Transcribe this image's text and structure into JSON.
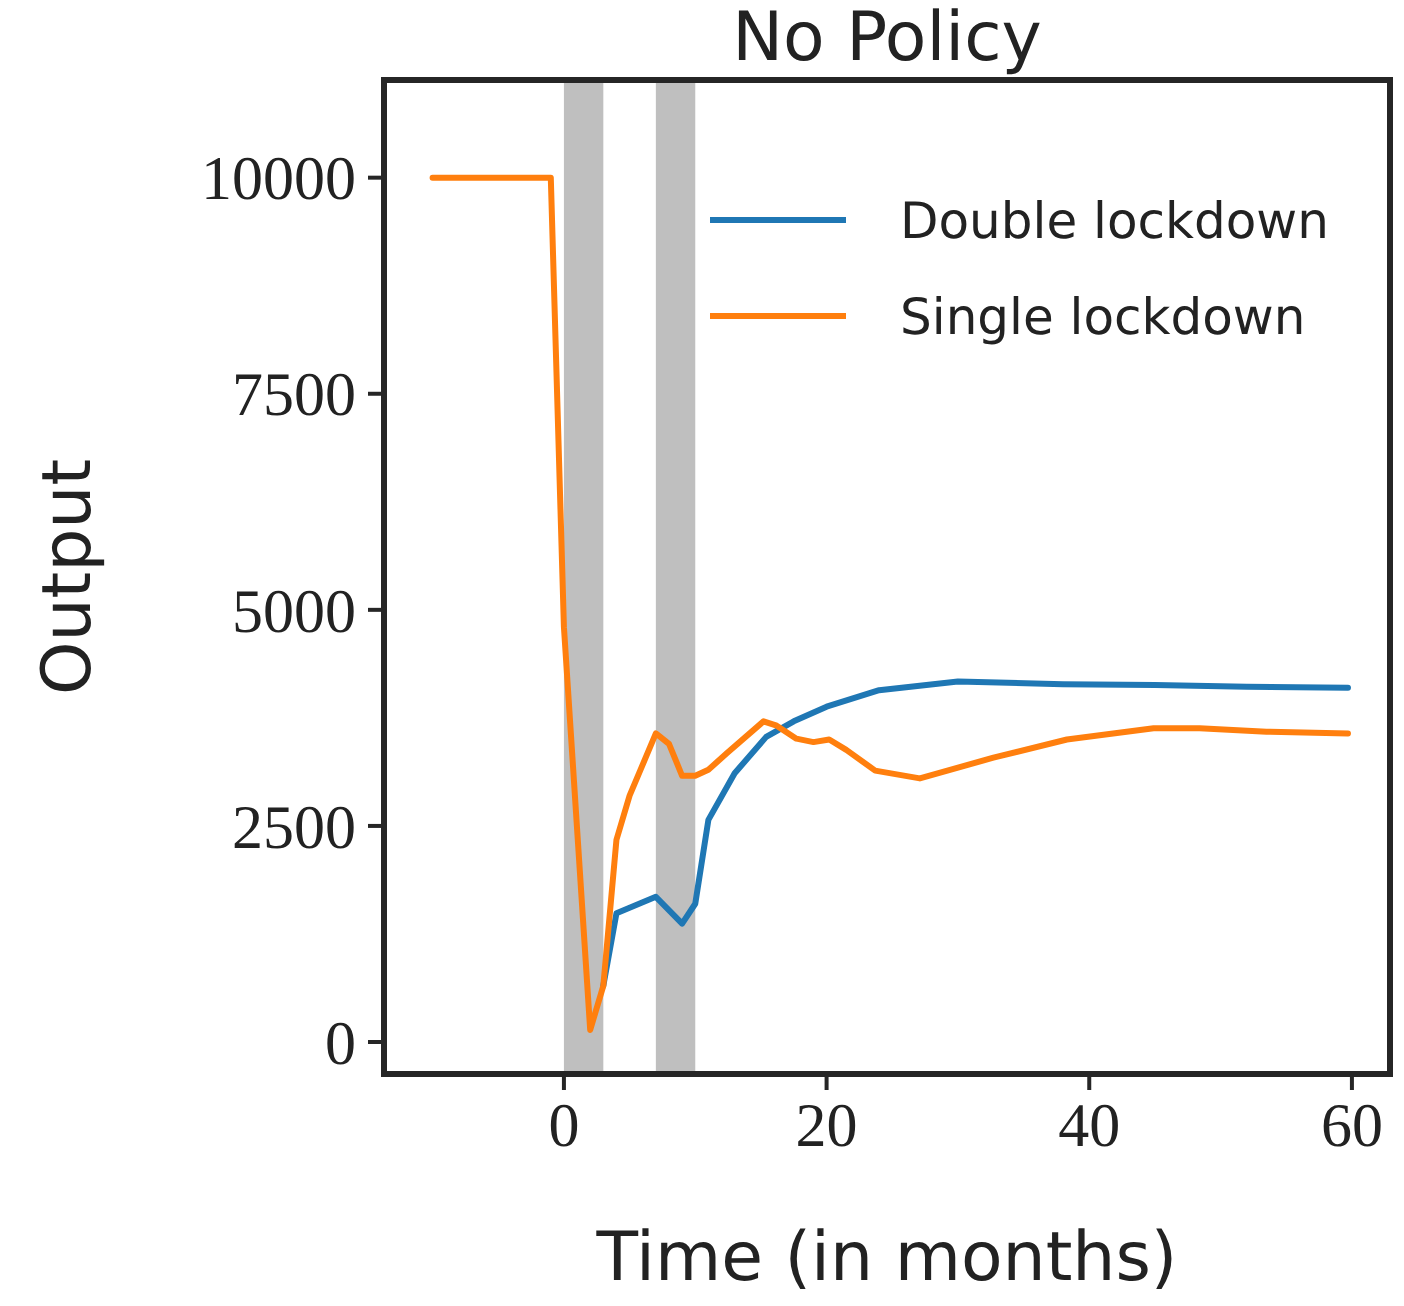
{
  "chart_data": {
    "type": "line",
    "title": "No Policy",
    "xlabel": "Time (in months)",
    "ylabel": "Output",
    "xlim": [
      -13.7,
      62.9
    ],
    "ylim": [
      -370,
      11130
    ],
    "xticks": [
      0,
      20,
      40,
      60
    ],
    "yticks": [
      0,
      2500,
      5000,
      7500,
      10000
    ],
    "legend": "top right",
    "grid": false,
    "bands": [
      {
        "axis": "x",
        "from": 0,
        "to": 3,
        "color": "#bfbfbf"
      },
      {
        "axis": "x",
        "from": 7,
        "to": 10,
        "color": "#bfbfbf"
      }
    ],
    "series": [
      {
        "name": "Double lockdown",
        "color": "#1f77b4",
        "x": [
          3,
          4,
          7,
          9,
          10,
          11,
          13,
          15.4,
          17.5,
          20,
          24,
          30,
          38,
          45,
          52,
          59.7
        ],
        "values": [
          650,
          1490,
          1680,
          1370,
          1600,
          2570,
          3110,
          3530,
          3710,
          3880,
          4070,
          4170,
          4140,
          4130,
          4110,
          4100
        ]
      },
      {
        "name": "Single lockdown",
        "color": "#ff7f0e",
        "x": [
          -10,
          -1,
          0,
          2,
          3,
          4,
          5,
          7,
          8,
          9,
          10,
          11,
          12.4,
          15.2,
          16.2,
          17.7,
          19,
          20.2,
          21.5,
          23.7,
          27.1,
          32.7,
          38.3,
          44.9,
          48.4,
          53.5,
          59.7
        ],
        "values": [
          10000,
          10000,
          4800,
          140,
          650,
          2340,
          2850,
          3570,
          3450,
          3080,
          3080,
          3150,
          3340,
          3710,
          3660,
          3510,
          3470,
          3500,
          3380,
          3140,
          3050,
          3290,
          3500,
          3630,
          3630,
          3590,
          3570
        ]
      }
    ]
  }
}
